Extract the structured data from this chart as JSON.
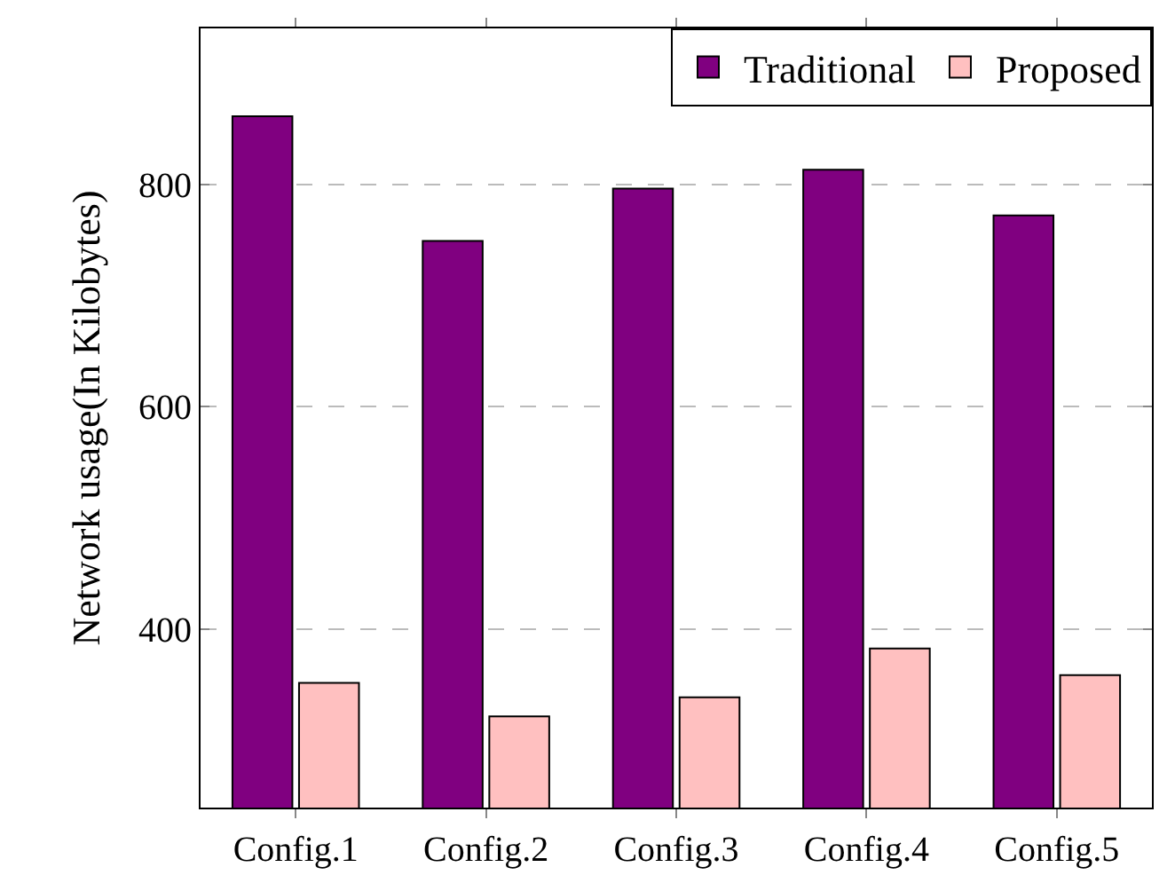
{
  "chart_data": {
    "type": "bar",
    "ylabel": "Network usage(In Kilobytes)",
    "categories": [
      "Config.1",
      "Config.2",
      "Config.3",
      "Config.4",
      "Config.5"
    ],
    "series": [
      {
        "name": "Traditional",
        "color": "#800080",
        "values": [
          861,
          749,
          796,
          813,
          772
        ]
      },
      {
        "name": "Proposed",
        "color": "#ffc0c0",
        "values": [
          352,
          322,
          339,
          383,
          359
        ]
      }
    ],
    "ylim": [
      240,
      940
    ],
    "yticks": [
      400,
      600,
      800
    ],
    "grid": "y",
    "legend": "top right"
  }
}
